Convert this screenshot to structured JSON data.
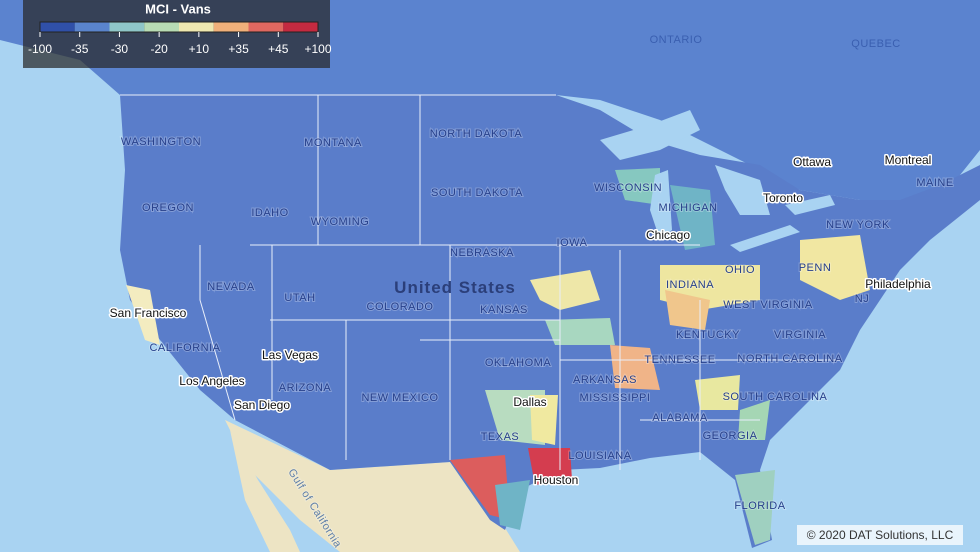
{
  "legend": {
    "title": "MCI - Vans",
    "labels": [
      "-100",
      "-35",
      "-30",
      "-20",
      "+10",
      "+35",
      "+45",
      "+100"
    ],
    "colors": [
      "#3050a8",
      "#5a84cc",
      "#8fc6c8",
      "#b8dcb4",
      "#efe8b0",
      "#f0b07a",
      "#e06860",
      "#c42a40"
    ]
  },
  "map_labels": [
    "ONTARIO",
    "QUEBEC",
    "NORTH DAKOTA",
    "MONTANA",
    "WASHINGTON",
    "OREGON",
    "IDAHO",
    "WYOMING",
    "SOUTH DAKOTA",
    "NEBRASKA",
    "IOWA",
    "WISCONSIN",
    "MICHIGAN",
    "Chicago",
    "Toronto",
    "Ottawa",
    "Montreal",
    "MAINE",
    "NEW YORK",
    "PENN",
    "OHIO",
    "INDIANA",
    "Philadelphia",
    "NJ",
    "United States",
    "NEVADA",
    "UTAH",
    "COLORADO",
    "KANSAS",
    "San Francisco",
    "CALIFORNIA",
    "Las Vegas",
    "Los Angeles",
    "San Diego",
    "ARIZONA",
    "NEW MEXICO",
    "OKLAHOMA",
    "ARKANSAS",
    "TENNESSEE",
    "KENTUCKY",
    "WEST VIRGINIA",
    "VIRGINIA",
    "NORTH CAROLINA",
    "SOUTH CAROLINA",
    "Dallas",
    "TEXAS",
    "MISSISSIPPI",
    "ALABAMA",
    "GEORGIA",
    "LOUISIANA",
    "Houston",
    "FLORIDA",
    "Gulf of California"
  ],
  "attribution": "© 2020 DAT Solutions, LLC"
}
